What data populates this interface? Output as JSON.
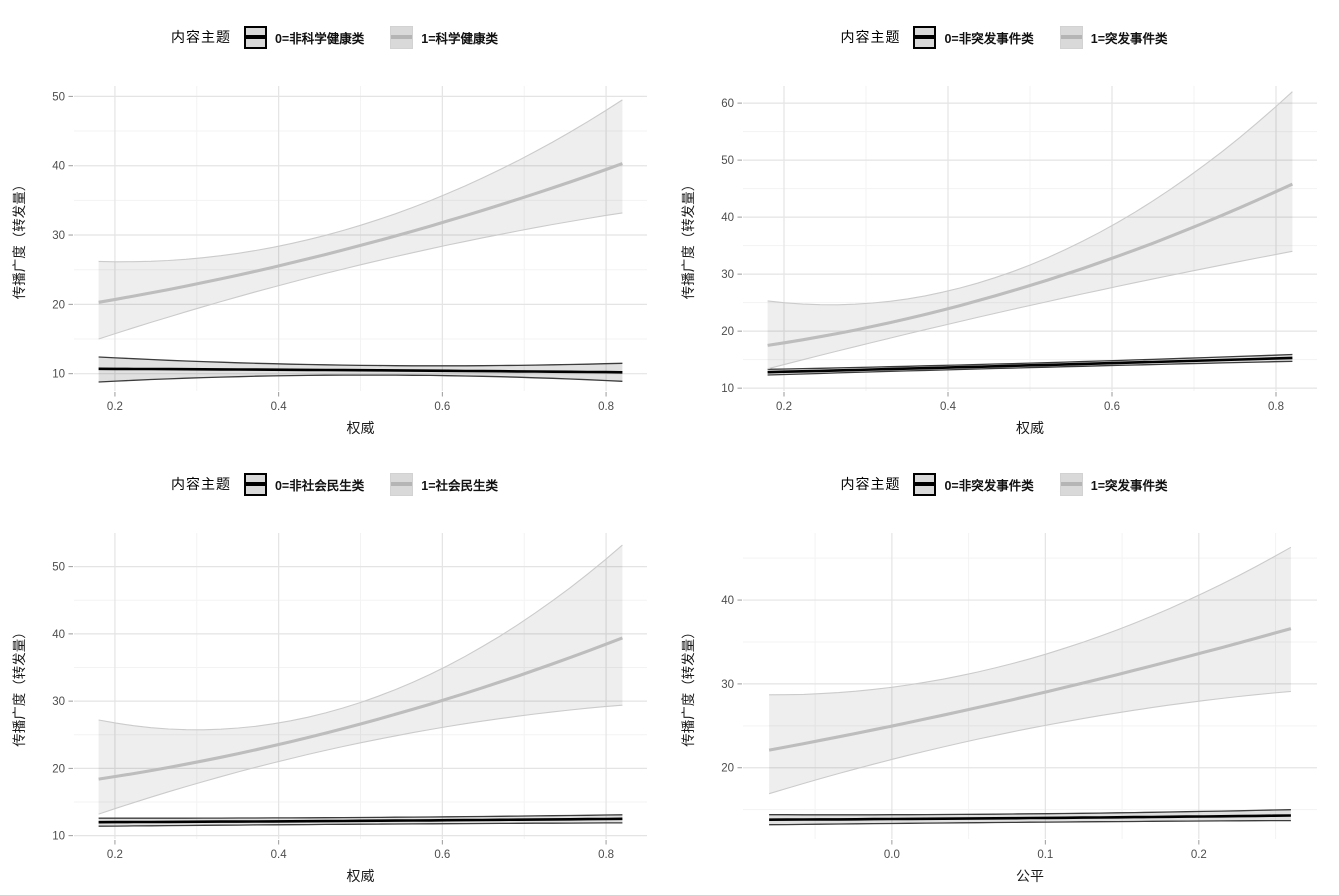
{
  "colors": {
    "background": "#ffffff",
    "black_line": "#000000",
    "black_ribbon_edge": "#3c3c3c",
    "black_ribbon_fill": "rgba(0,0,0,0.12)",
    "gray_line": "#bdbdbd",
    "gray_ribbon_edge": "#cbcbcb",
    "gray_ribbon_fill": "rgba(0,0,0,0.065)",
    "grid_major": "#e4e4e4",
    "grid_minor": "#f3f3f3",
    "tick_mark": "#9a9a9a",
    "axis_text": "#4d4d4d",
    "axis_title": "#1a1a1a"
  },
  "chart_data": [
    {
      "type": "line",
      "position": "top-left",
      "legend": {
        "title": "内容主题",
        "position": "top",
        "items": [
          {
            "label": "0=非科学健康类",
            "style": "black"
          },
          {
            "label": "1=科学健康类",
            "style": "gray"
          }
        ]
      },
      "xlabel": "权威",
      "ylabel": "传播广度（转发量）",
      "xlim": [
        0.15,
        0.85
      ],
      "ylim": [
        7.5,
        51.5
      ],
      "x_ticks": {
        "values": [
          0.2,
          0.4,
          0.6,
          0.8
        ],
        "labels": [
          "0.2",
          "0.4",
          "0.6",
          "0.8"
        ]
      },
      "y_ticks": {
        "values": [
          10,
          20,
          30,
          40,
          50
        ],
        "labels": [
          "10",
          "20",
          "30",
          "40",
          "50"
        ]
      },
      "grid": true,
      "series": [
        {
          "name": "0=非科学健康类",
          "style": "black",
          "x": [
            0.18,
            0.5,
            0.82
          ],
          "y": [
            10.7,
            10.5,
            10.2
          ],
          "ci_upper": [
            12.4,
            11.2,
            11.5
          ],
          "ci_lower": [
            8.8,
            9.8,
            8.9
          ]
        },
        {
          "name": "1=科学健康类",
          "style": "gray",
          "x": [
            0.18,
            0.5,
            0.82
          ],
          "y": [
            20.3,
            28.5,
            40.3
          ],
          "ci_upper": [
            26.2,
            31.4,
            49.5
          ],
          "ci_lower": [
            15.0,
            25.7,
            33.2
          ]
        }
      ]
    },
    {
      "type": "line",
      "position": "top-right",
      "legend": {
        "title": "内容主题",
        "position": "top",
        "items": [
          {
            "label": "0=非突发事件类",
            "style": "black"
          },
          {
            "label": "1=突发事件类",
            "style": "gray"
          }
        ]
      },
      "xlabel": "权威",
      "ylabel": "传播广度（转发量）",
      "xlim": [
        0.15,
        0.85
      ],
      "ylim": [
        9.5,
        63
      ],
      "x_ticks": {
        "values": [
          0.2,
          0.4,
          0.6,
          0.8
        ],
        "labels": [
          "0.2",
          "0.4",
          "0.6",
          "0.8"
        ]
      },
      "y_ticks": {
        "values": [
          10,
          20,
          30,
          40,
          50,
          60
        ],
        "labels": [
          "10",
          "20",
          "30",
          "40",
          "50",
          "60"
        ]
      },
      "grid": true,
      "series": [
        {
          "name": "0=非突发事件类",
          "style": "black",
          "x": [
            0.18,
            0.5,
            0.82
          ],
          "y": [
            12.8,
            14.0,
            15.3
          ],
          "ci_upper": [
            13.3,
            14.4,
            15.9
          ],
          "ci_lower": [
            12.3,
            13.6,
            14.7
          ]
        },
        {
          "name": "1=突发事件类",
          "style": "gray",
          "x": [
            0.18,
            0.5,
            0.82
          ],
          "y": [
            17.5,
            28.0,
            45.8
          ],
          "ci_upper": [
            25.3,
            31.6,
            62.0
          ],
          "ci_lower": [
            13.4,
            24.5,
            34.0
          ]
        }
      ]
    },
    {
      "type": "line",
      "position": "bottom-left",
      "legend": {
        "title": "内容主题",
        "position": "top",
        "items": [
          {
            "label": "0=非社会民生类",
            "style": "black"
          },
          {
            "label": "1=社会民生类",
            "style": "gray"
          }
        ]
      },
      "xlabel": "权威",
      "ylabel": "传播广度（转发量）",
      "xlim": [
        0.15,
        0.85
      ],
      "ylim": [
        9.5,
        55
      ],
      "x_ticks": {
        "values": [
          0.2,
          0.4,
          0.6,
          0.8
        ],
        "labels": [
          "0.2",
          "0.4",
          "0.6",
          "0.8"
        ]
      },
      "y_ticks": {
        "values": [
          10,
          20,
          30,
          40,
          50
        ],
        "labels": [
          "10",
          "20",
          "30",
          "40",
          "50"
        ]
      },
      "grid": true,
      "series": [
        {
          "name": "0=非社会民生类",
          "style": "black",
          "x": [
            0.18,
            0.5,
            0.82
          ],
          "y": [
            12.0,
            12.2,
            12.5
          ],
          "ci_upper": [
            12.6,
            12.7,
            13.1
          ],
          "ci_lower": [
            11.4,
            11.7,
            11.9
          ]
        },
        {
          "name": "1=社会民生类",
          "style": "gray",
          "x": [
            0.18,
            0.5,
            0.82
          ],
          "y": [
            18.4,
            26.6,
            39.4
          ],
          "ci_upper": [
            27.2,
            29.8,
            53.2
          ],
          "ci_lower": [
            13.2,
            23.8,
            29.4
          ]
        }
      ]
    },
    {
      "type": "line",
      "position": "bottom-right",
      "legend": {
        "title": "内容主题",
        "position": "top",
        "items": [
          {
            "label": "0=非突发事件类",
            "style": "black"
          },
          {
            "label": "1=突发事件类",
            "style": "gray"
          }
        ]
      },
      "xlabel": "公平",
      "ylabel": "传播广度（转发量）",
      "xlim": [
        -0.097,
        0.277
      ],
      "ylim": [
        11.5,
        48
      ],
      "x_ticks": {
        "values": [
          0.0,
          0.1,
          0.2
        ],
        "labels": [
          "0.0",
          "0.1",
          "0.2"
        ]
      },
      "y_ticks": {
        "values": [
          20,
          30,
          40
        ],
        "labels": [
          "20",
          "30",
          "40"
        ]
      },
      "grid": true,
      "series": [
        {
          "name": "0=非突发事件类",
          "style": "black",
          "x": [
            -0.08,
            0.09,
            0.26
          ],
          "y": [
            13.8,
            14.0,
            14.3
          ],
          "ci_upper": [
            14.4,
            14.5,
            15.0
          ],
          "ci_lower": [
            13.2,
            13.5,
            13.7
          ]
        },
        {
          "name": "1=突发事件类",
          "style": "gray",
          "x": [
            -0.08,
            0.09,
            0.26
          ],
          "y": [
            22.1,
            28.6,
            36.6
          ],
          "ci_upper": [
            28.7,
            33.0,
            46.3
          ],
          "ci_lower": [
            16.9,
            24.7,
            29.1
          ]
        }
      ]
    }
  ]
}
